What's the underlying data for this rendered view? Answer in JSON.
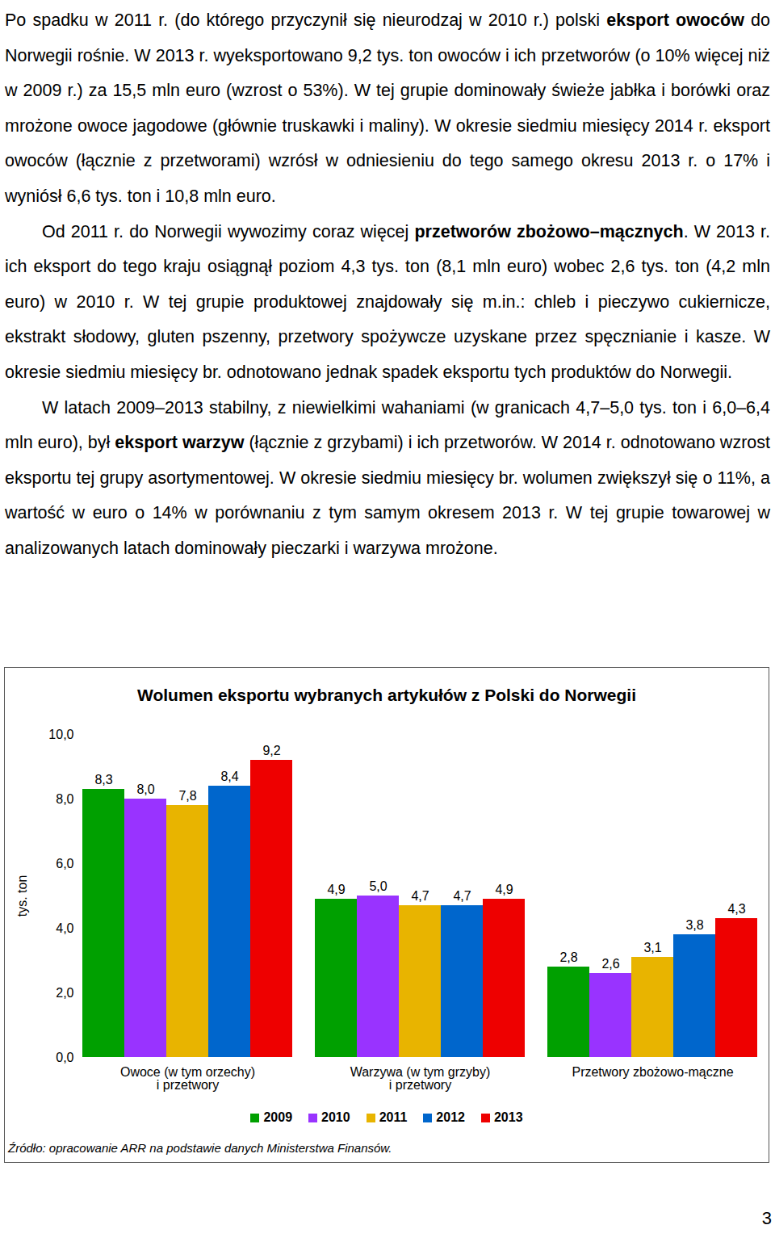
{
  "document": {
    "paragraphs": [
      [
        "Po spadku w 2011 r. (do którego przyczynił się nieurodzaj w 2010 r.) polski ",
        {
          "text": "eksport owoców",
          "bold": true
        },
        " do Norwegii rośnie. W 2013 r. wyeksportowano 9,2 tys. ton owoców i ich przetworów (o 10% więcej niż w 2009 r.) za 15,5 mln euro (wzrost o 53%). W tej grupie dominowały świeże jabłka i borówki oraz mrożone owoce jagodowe (głównie truskawki i maliny). W okresie siedmiu miesięcy 2014 r. eksport owoców (łącznie z przetworami) wzrósł w odniesieniu do tego samego okresu 2013 r. o 17% i wyniósł 6,6 tys. ton i 10,8 mln euro."
      ],
      [
        "Od 2011 r. do Norwegii wywozimy coraz więcej ",
        {
          "text": "przetworów zbożowo–mącznych",
          "bold": true
        },
        ". W 2013 r. ich eksport do tego kraju osiągnął poziom 4,3 tys. ton (8,1 mln euro) wobec 2,6 tys. ton (4,2 mln euro) w 2010 r. W tej grupie produktowej znajdowały się m.in.: chleb i pieczywo cukiernicze, ekstrakt słodowy, gluten pszenny, przetwory spożywcze uzyskane przez spęcznianie i kasze. W okresie siedmiu miesięcy br. odnotowano jednak spadek eksportu tych produktów do Norwegii."
      ],
      [
        "W latach 2009–2013 stabilny, z niewielkimi wahaniami (w granicach 4,7–5,0 tys. ton i 6,0–6,4 mln euro), był ",
        {
          "text": "eksport warzyw",
          "bold": true
        },
        " (łącznie z grzybami) i ich przetworów. W 2014 r. odnotowano wzrost eksportu tej grupy asortymentowej. W okresie siedmiu miesięcy br. wolumen zwiększył się o 11%, a wartość w euro o 14% w porównaniu z tym samym okresem 2013 r. W tej grupie towarowej w analizowanych latach dominowały pieczarki i warzywa mrożone."
      ]
    ],
    "page_number": "3"
  },
  "chart_data": {
    "type": "bar",
    "title": "Wolumen eksportu wybranych artykułów z Polski do Norwegii",
    "y_label": "tys. ton",
    "source": "Źródło: opracowanie ARR na podstawie danych Ministerstwa Finansów.",
    "categories": [
      "Owoce (w tym orzechy)\ni przetwory",
      "Warzywa (w tym grzyby)\ni przetwory",
      "Przetwory zbożowo-mączne"
    ],
    "series": [
      {
        "name": "2009",
        "color": "#00a000",
        "values": [
          8.3,
          4.9,
          2.8
        ],
        "value_labels": [
          "8,3",
          "4,9",
          "2,8"
        ]
      },
      {
        "name": "2010",
        "color": "#9933ff",
        "values": [
          8.0,
          5.0,
          2.6
        ],
        "value_labels": [
          "8,0",
          "5,0",
          "2,6"
        ]
      },
      {
        "name": "2011",
        "color": "#e8b400",
        "values": [
          7.8,
          4.7,
          3.1
        ],
        "value_labels": [
          "7,8",
          "4,7",
          "3,1"
        ]
      },
      {
        "name": "2012",
        "color": "#0066cc",
        "values": [
          8.4,
          4.7,
          3.8
        ],
        "value_labels": [
          "8,4",
          "4,7",
          "3,8"
        ]
      },
      {
        "name": "2013",
        "color": "#ee0000",
        "values": [
          9.2,
          4.9,
          4.3
        ],
        "value_labels": [
          "9,2",
          "4,9",
          "4,3"
        ]
      }
    ],
    "ylim": [
      0,
      10
    ],
    "yticks": [
      {
        "value": 0,
        "label": "0,0"
      },
      {
        "value": 2,
        "label": "2,0"
      },
      {
        "value": 4,
        "label": "4,0"
      },
      {
        "value": 6,
        "label": "6,0"
      },
      {
        "value": 8,
        "label": "8,0"
      },
      {
        "value": 10,
        "label": "10,0"
      }
    ],
    "grid": false,
    "legend": "bottom",
    "data_labels": true
  }
}
